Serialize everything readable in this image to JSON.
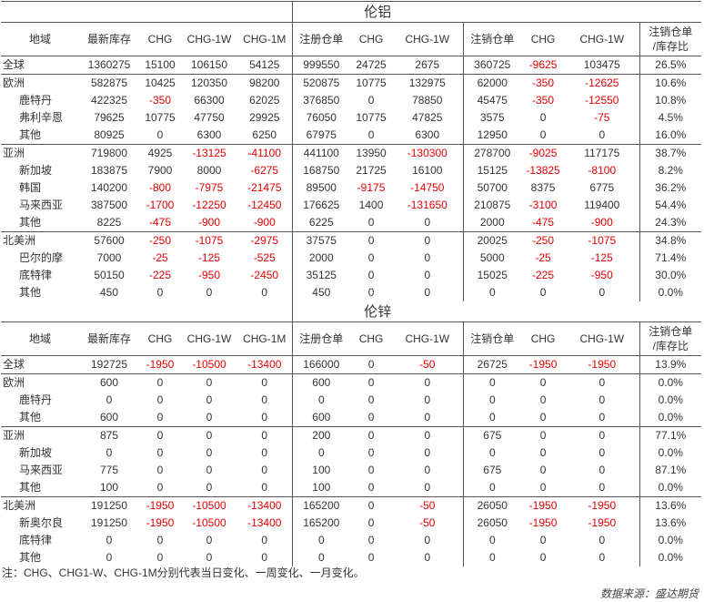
{
  "headers": [
    "地域",
    "最新库存",
    "CHG",
    "CHG-1W",
    "CHG-1M",
    "注册仓单",
    "CHG",
    "CHG-1W",
    "注销仓单",
    "CHG",
    "CHG-1W",
    "注销仓单/库存比"
  ],
  "ratio_header_line1": "注销仓单",
  "ratio_header_line2": "/库存比",
  "tables": [
    {
      "title": "伦铝",
      "rows": [
        {
          "region": "全球",
          "top": true,
          "group_start": true,
          "cells": [
            "1360275",
            "15100",
            "106150",
            "54125",
            "999550",
            "24725",
            "2675",
            "360725",
            "-9625",
            "103475",
            "26.5%"
          ]
        },
        {
          "region": "欧洲",
          "top": true,
          "group_start": true,
          "cells": [
            "582875",
            "10425",
            "120350",
            "98200",
            "520875",
            "10775",
            "132975",
            "62000",
            "-350",
            "-12625",
            "10.6%"
          ]
        },
        {
          "region": "鹿特丹",
          "top": false,
          "cells": [
            "422325",
            "-350",
            "66300",
            "62025",
            "376850",
            "0",
            "78850",
            "45475",
            "-350",
            "-12550",
            "10.8%"
          ]
        },
        {
          "region": "弗利辛恩",
          "top": false,
          "cells": [
            "79625",
            "10775",
            "47750",
            "29925",
            "76050",
            "10775",
            "47825",
            "3575",
            "0",
            "-75",
            "4.5%"
          ]
        },
        {
          "region": "其他",
          "top": false,
          "cells": [
            "80925",
            "0",
            "6300",
            "6250",
            "67975",
            "0",
            "6300",
            "12950",
            "0",
            "0",
            "16.0%"
          ]
        },
        {
          "region": "亚洲",
          "top": true,
          "group_start": true,
          "cells": [
            "719800",
            "4925",
            "-13125",
            "-41100",
            "441100",
            "13950",
            "-130300",
            "278700",
            "-9025",
            "117175",
            "38.7%"
          ]
        },
        {
          "region": "新加坡",
          "top": false,
          "cells": [
            "183875",
            "7900",
            "8000",
            "-6275",
            "168750",
            "21725",
            "16100",
            "15125",
            "-13825",
            "-8100",
            "8.2%"
          ]
        },
        {
          "region": "韩国",
          "top": false,
          "cells": [
            "140200",
            "-800",
            "-7975",
            "-21475",
            "89500",
            "-9175",
            "-14750",
            "50700",
            "8375",
            "6775",
            "36.2%"
          ]
        },
        {
          "region": "马来西亚",
          "top": false,
          "cells": [
            "387500",
            "-1700",
            "-12250",
            "-12450",
            "176625",
            "1400",
            "-131650",
            "210875",
            "-3100",
            "119400",
            "54.4%"
          ]
        },
        {
          "region": "其他",
          "top": false,
          "cells": [
            "8225",
            "-475",
            "-900",
            "-900",
            "6225",
            "0",
            "0",
            "2000",
            "-475",
            "-900",
            "24.3%"
          ]
        },
        {
          "region": "北美洲",
          "top": true,
          "group_start": true,
          "cells": [
            "57600",
            "-250",
            "-1075",
            "-2975",
            "37575",
            "0",
            "0",
            "20025",
            "-250",
            "-1075",
            "34.8%"
          ]
        },
        {
          "region": "巴尔的摩",
          "top": false,
          "cells": [
            "7000",
            "-25",
            "-125",
            "-525",
            "2000",
            "0",
            "0",
            "5000",
            "-25",
            "-125",
            "71.4%"
          ]
        },
        {
          "region": "底特律",
          "top": false,
          "cells": [
            "50150",
            "-225",
            "-950",
            "-2450",
            "35125",
            "0",
            "0",
            "15025",
            "-225",
            "-950",
            "30.0%"
          ]
        },
        {
          "region": "其他",
          "top": false,
          "cells": [
            "450",
            "0",
            "0",
            "0",
            "450",
            "0",
            "0",
            "0",
            "0",
            "0",
            "0.0%"
          ]
        }
      ]
    },
    {
      "title": "伦锌",
      "rows": [
        {
          "region": "全球",
          "top": true,
          "group_start": true,
          "cells": [
            "192725",
            "-1950",
            "-10500",
            "-13400",
            "166000",
            "0",
            "-50",
            "26725",
            "-1950",
            "-1950",
            "13.9%"
          ]
        },
        {
          "region": "欧洲",
          "top": true,
          "group_start": true,
          "cells": [
            "600",
            "0",
            "0",
            "0",
            "600",
            "0",
            "0",
            "0",
            "0",
            "0",
            "0.0%"
          ]
        },
        {
          "region": "鹿特丹",
          "top": false,
          "cells": [
            "0",
            "0",
            "0",
            "0",
            "0",
            "0",
            "0",
            "0",
            "0",
            "0",
            "0.0%"
          ]
        },
        {
          "region": "其他",
          "top": false,
          "cells": [
            "600",
            "0",
            "0",
            "0",
            "600",
            "0",
            "0",
            "0",
            "0",
            "0",
            "0.0%"
          ]
        },
        {
          "region": "亚洲",
          "top": true,
          "group_start": true,
          "cells": [
            "875",
            "0",
            "0",
            "0",
            "200",
            "0",
            "0",
            "675",
            "0",
            "0",
            "77.1%"
          ]
        },
        {
          "region": "新加坡",
          "top": false,
          "cells": [
            "0",
            "0",
            "0",
            "0",
            "0",
            "0",
            "0",
            "0",
            "0",
            "0",
            "0.0%"
          ]
        },
        {
          "region": "马来西亚",
          "top": false,
          "cells": [
            "775",
            "0",
            "0",
            "0",
            "100",
            "0",
            "0",
            "675",
            "0",
            "0",
            "87.1%"
          ]
        },
        {
          "region": "其他",
          "top": false,
          "cells": [
            "100",
            "0",
            "0",
            "0",
            "100",
            "0",
            "0",
            "0",
            "0",
            "0",
            "0.0%"
          ]
        },
        {
          "region": "北美洲",
          "top": true,
          "group_start": true,
          "cells": [
            "191250",
            "-1950",
            "-10500",
            "-13400",
            "165200",
            "0",
            "-50",
            "26050",
            "-1950",
            "-1950",
            "13.6%"
          ]
        },
        {
          "region": "新奥尔良",
          "top": false,
          "cells": [
            "191250",
            "-1950",
            "-10500",
            "-13400",
            "165200",
            "0",
            "-50",
            "26050",
            "-1950",
            "-1950",
            "13.6%"
          ]
        },
        {
          "region": "底特律",
          "top": false,
          "cells": [
            "0",
            "0",
            "0",
            "0",
            "0",
            "0",
            "0",
            "0",
            "0",
            "0",
            "0.0%"
          ]
        },
        {
          "region": "其他",
          "top": false,
          "cells": [
            "0",
            "0",
            "0",
            "0",
            "0",
            "0",
            "0",
            "0",
            "0",
            "0",
            "0.0%"
          ]
        }
      ]
    }
  ],
  "note": "注：CHG、CHG1-W、CHG-1M分别代表当日变化、一周变化、一月变化。",
  "source": "数据来源：盛达期货",
  "colors": {
    "negative": "#e60000",
    "text": "#333333",
    "border": "#555555"
  }
}
